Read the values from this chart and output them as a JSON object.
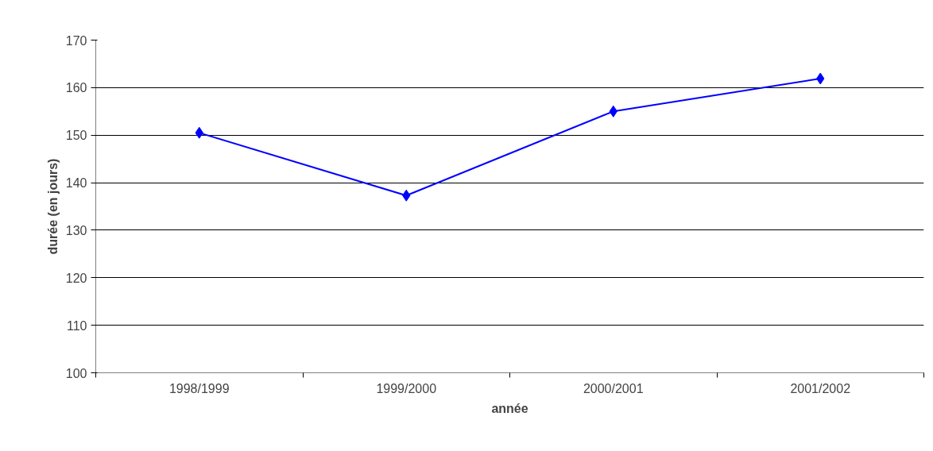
{
  "chart_data": {
    "type": "line",
    "xlabel": "année",
    "ylabel": "durée (en jours)",
    "categories": [
      "1998/1999",
      "1999/2000",
      "2000/2001",
      "2001/2002"
    ],
    "series": [
      {
        "color": "#0000ff",
        "values": [
          150.5,
          137.3,
          155,
          161.9
        ]
      }
    ],
    "ylim": [
      100,
      170
    ],
    "yticks": [
      100,
      110,
      120,
      130,
      140,
      150,
      160,
      170
    ],
    "grid": "y",
    "marker": "diamond",
    "line_style": "solid"
  }
}
